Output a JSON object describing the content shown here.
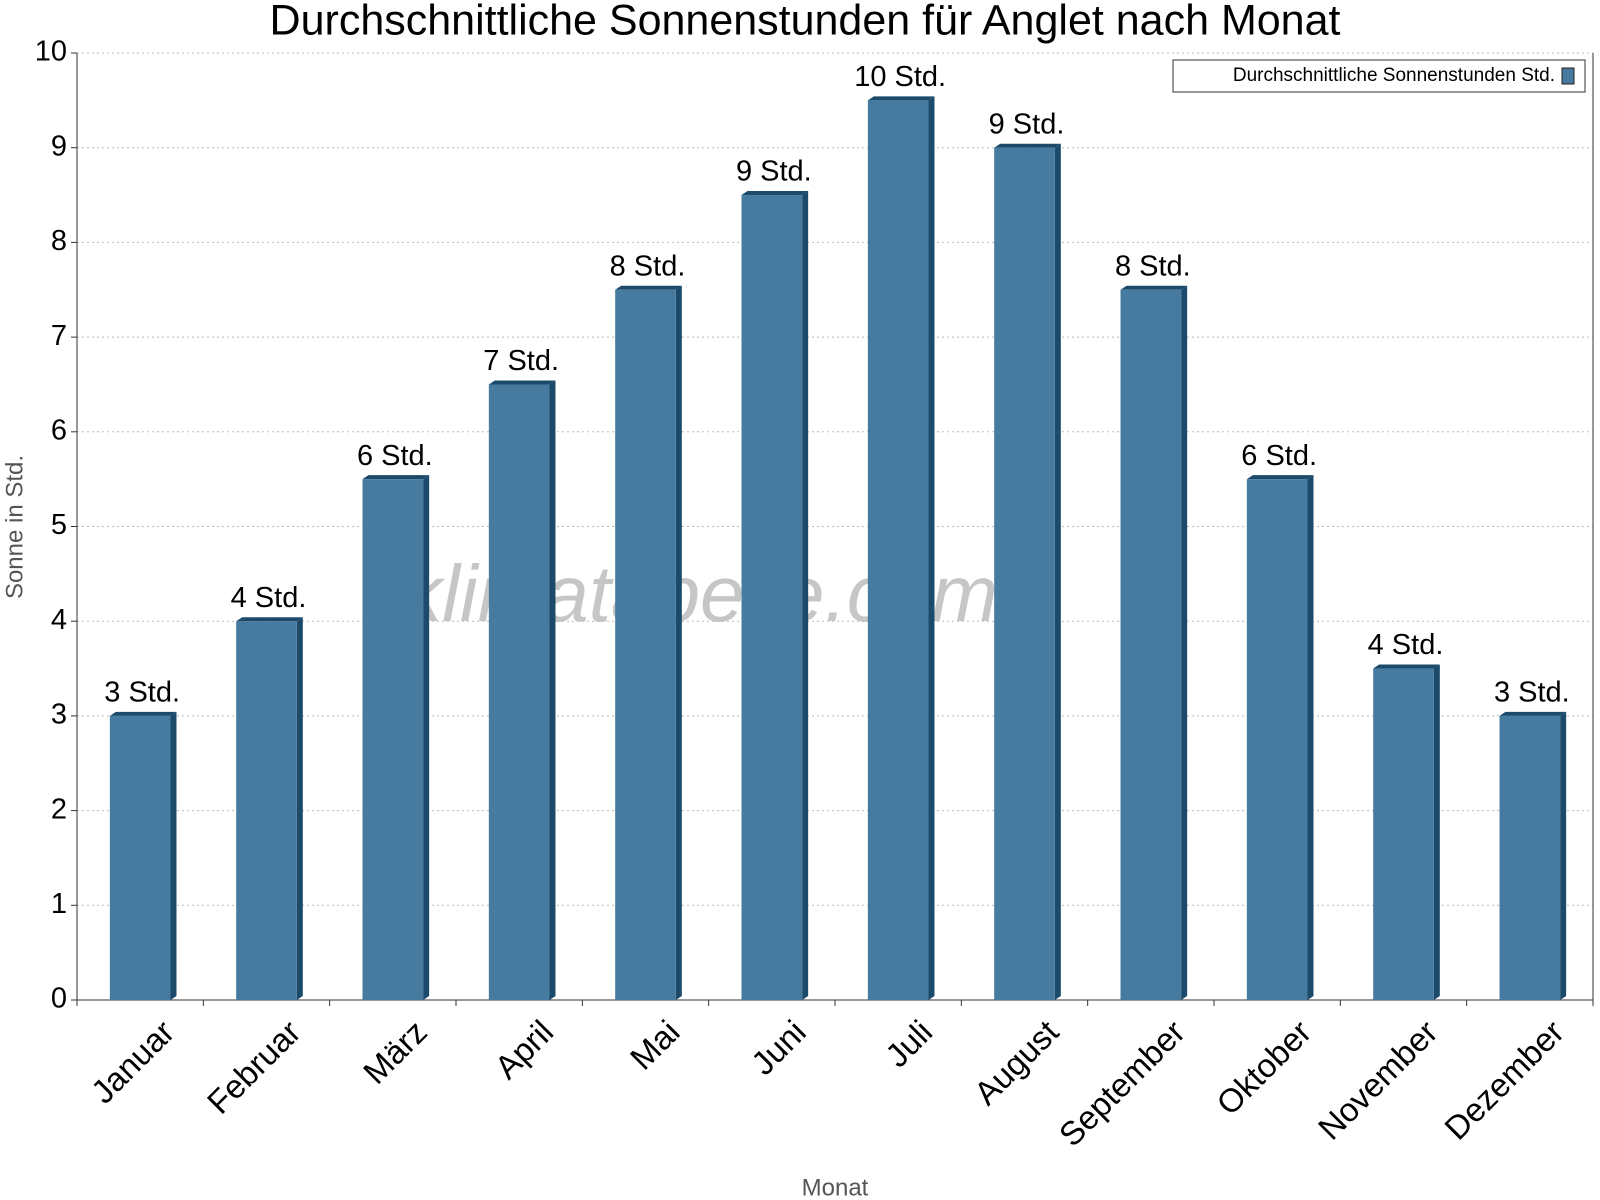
{
  "chart_data": {
    "type": "bar",
    "title": "Durchschnittliche Sonnenstunden für Anglet nach Monat",
    "x_label": "Monat",
    "y_label": "Sonne in Std.",
    "watermark": "klimatabelle.com",
    "categories": [
      "Januar",
      "Februar",
      "März",
      "April",
      "Mai",
      "Juni",
      "Juli",
      "August",
      "September",
      "Oktober",
      "November",
      "Dezember"
    ],
    "series": [
      {
        "name": "Durchschnittliche Sonnenstunden Std.",
        "color": "#467a9e",
        "values": [
          3,
          4,
          5.5,
          6.5,
          7.5,
          8.5,
          9.5,
          9,
          7.5,
          5.5,
          3.5,
          3
        ],
        "value_labels": [
          "3 Std.",
          "4 Std.",
          "6 Std.",
          "7 Std.",
          "8 Std.",
          "9 Std.",
          "10 Std.",
          "9 Std.",
          "8 Std.",
          "6 Std.",
          "4 Std.",
          "3 Std."
        ]
      }
    ],
    "ylim": [
      0,
      10
    ],
    "yticks": [
      0,
      1,
      2,
      3,
      4,
      5,
      6,
      7,
      8,
      9,
      10
    ],
    "grid": true,
    "legend": "top-right"
  }
}
